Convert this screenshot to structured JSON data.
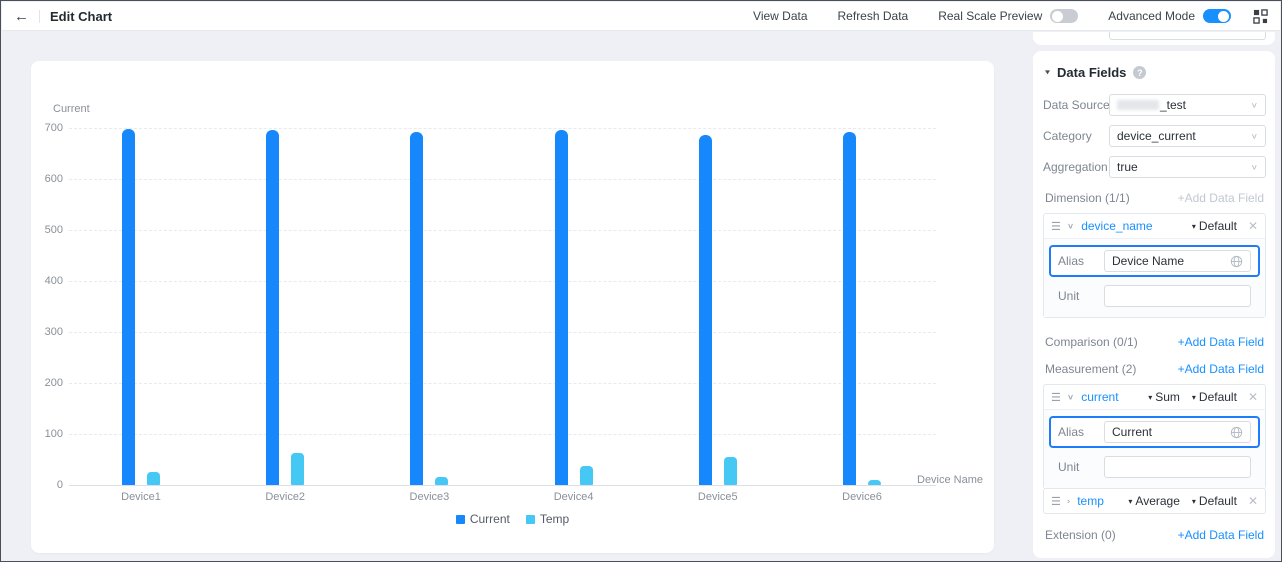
{
  "topbar": {
    "title": "Edit Chart",
    "view_data": "View Data",
    "refresh_data": "Refresh Data",
    "real_scale_preview": "Real Scale Preview",
    "real_scale_preview_on": false,
    "advanced_mode": "Advanced Mode",
    "advanced_mode_on": true
  },
  "chart_data": {
    "type": "bar",
    "title": "",
    "ylabel": "Current",
    "xlabel": "Device Name",
    "categories": [
      "Device1",
      "Device2",
      "Device3",
      "Device4",
      "Device5",
      "Device6"
    ],
    "series": [
      {
        "name": "Current",
        "color": "#1788fb",
        "values": [
          698,
          697,
          693,
          696,
          686,
          693
        ]
      },
      {
        "name": "Temp",
        "color": "#45c8f3",
        "values": [
          26,
          62,
          16,
          38,
          55,
          10
        ]
      }
    ],
    "ylim": [
      0,
      700
    ],
    "ytick_step": 100,
    "grid": "horizontal-dashed",
    "legend_position": "bottom-center"
  },
  "panel": {
    "title": "Data Fields",
    "help": "?",
    "data_source_label": "Data Source...",
    "data_source_value_suffix": "_test",
    "category_label": "Category",
    "category_value": "device_current",
    "aggregation_label": "Aggregation",
    "aggregation_value": "true",
    "dimension_label": "Dimension (1/1)",
    "comparison_label": "Comparison (0/1)",
    "measurement_label": "Measurement (2)",
    "extension_label": "Extension (0)",
    "add_data_field": "+Add Data Field",
    "alias_label": "Alias",
    "unit_label": "Unit",
    "dimension_field": {
      "name": "device_name",
      "format": "Default",
      "alias": "Device Name",
      "unit": ""
    },
    "measurement_field_1": {
      "name": "current",
      "agg": "Sum",
      "format": "Default",
      "alias": "Current",
      "unit": ""
    },
    "measurement_field_2": {
      "name": "temp",
      "agg": "Average",
      "format": "Default"
    }
  }
}
